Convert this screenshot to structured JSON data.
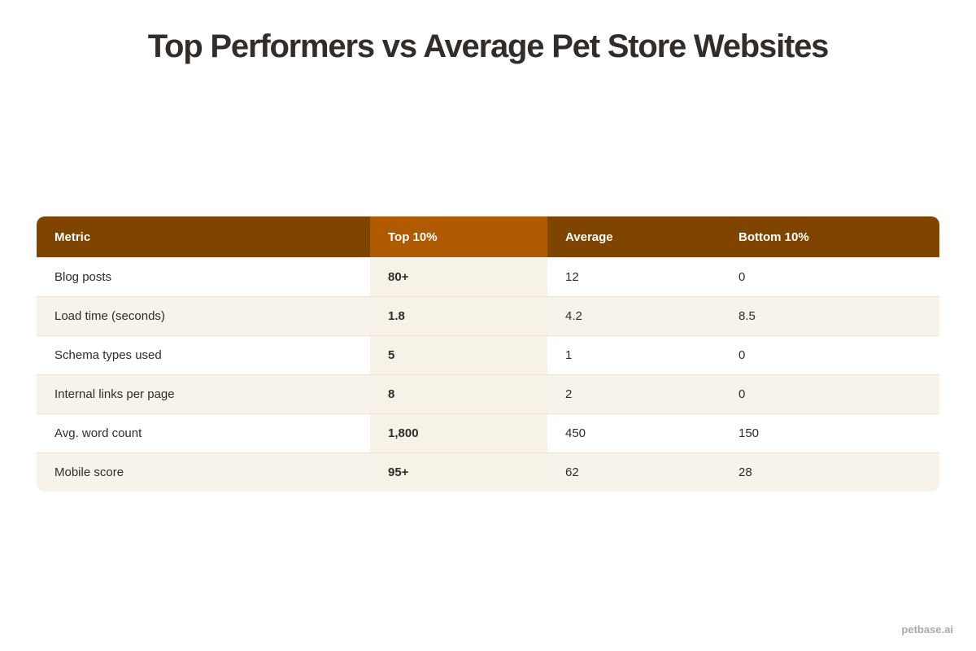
{
  "header": {
    "title": "Top Performers vs Average Pet Store Websites"
  },
  "table": {
    "columns": [
      "Metric",
      "Top 10%",
      "Average",
      "Bottom 10%"
    ],
    "rows": [
      [
        "Blog posts",
        "80+",
        "12",
        "0"
      ],
      [
        "Load time (seconds)",
        "1.8",
        "4.2",
        "8.5"
      ],
      [
        "Schema types used",
        "5",
        "1",
        "0"
      ],
      [
        "Internal links per page",
        "8",
        "2",
        "0"
      ],
      [
        "Avg. word count",
        "1,800",
        "450",
        "150"
      ],
      [
        "Mobile score",
        "95+",
        "62",
        "28"
      ]
    ]
  },
  "footer": {
    "brand": "petbase.ai"
  }
}
